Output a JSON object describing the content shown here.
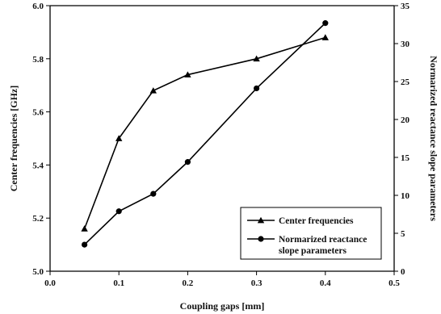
{
  "chart_data": {
    "type": "line",
    "xlabel": "Coupling gaps [mm]",
    "ylabel_left": "Center frequencies [GHz]",
    "ylabel_right": "Normarized reactance slope parameters",
    "xlim": [
      0.0,
      0.5
    ],
    "ylim_left": [
      5.0,
      6.0
    ],
    "ylim_right": [
      0,
      35
    ],
    "x_ticks": [
      "0.0",
      "0.1",
      "0.2",
      "0.3",
      "0.4",
      "0.5"
    ],
    "x_tick_values": [
      0.0,
      0.1,
      0.2,
      0.3,
      0.4,
      0.5
    ],
    "y_left_ticks": [
      "5.0",
      "5.2",
      "5.4",
      "5.6",
      "5.8",
      "6.0"
    ],
    "y_left_tick_values": [
      5.0,
      5.2,
      5.4,
      5.6,
      5.8,
      6.0
    ],
    "y_right_ticks": [
      "0",
      "5",
      "10",
      "15",
      "20",
      "25",
      "30",
      "35"
    ],
    "y_right_tick_values": [
      0,
      5,
      10,
      15,
      20,
      25,
      30,
      35
    ],
    "grid": false,
    "legend_position": "bottom-right",
    "series": [
      {
        "name": "Center frequencies",
        "marker": "triangle",
        "axis": "left",
        "x": [
          0.05,
          0.1,
          0.15,
          0.2,
          0.3,
          0.4
        ],
        "y": [
          5.16,
          5.5,
          5.68,
          5.74,
          5.8,
          5.88
        ]
      },
      {
        "name": "Normarized reactance slope parameters",
        "legend_lines": [
          "Normarized reactance",
          "slope parameters"
        ],
        "marker": "circle",
        "axis": "right",
        "x": [
          0.05,
          0.1,
          0.15,
          0.2,
          0.3,
          0.4
        ],
        "y": [
          3.5,
          7.9,
          10.2,
          14.4,
          24.1,
          32.7
        ]
      }
    ]
  }
}
